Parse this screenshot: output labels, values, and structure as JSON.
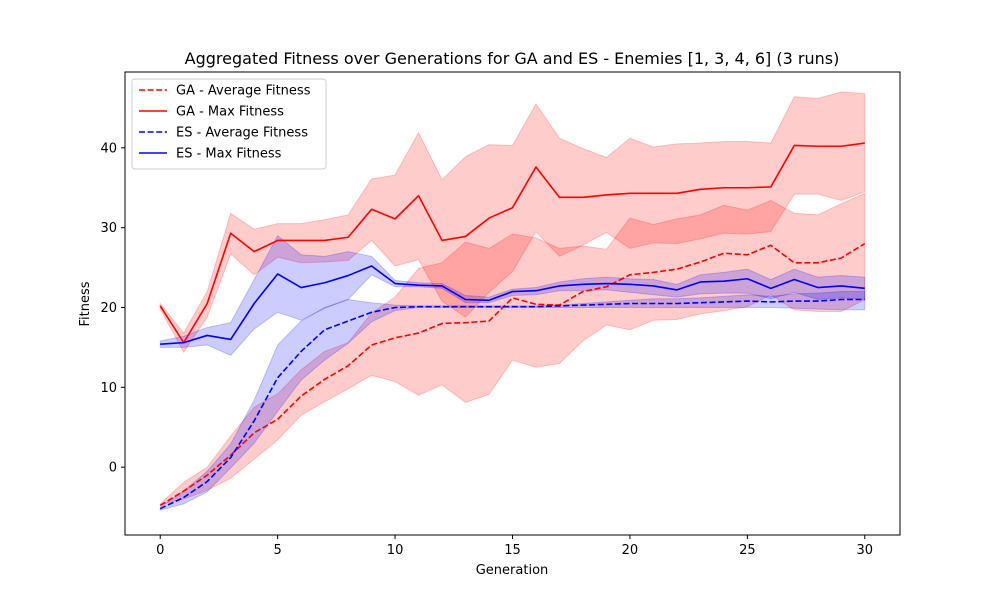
{
  "chart_data": {
    "type": "line",
    "title": "Aggregated Fitness over Generations for GA and ES - Enemies [1, 3, 4, 6] (3 runs)",
    "xlabel": "Generation",
    "ylabel": "Fitness",
    "xlim": [
      -1.5,
      31.5
    ],
    "ylim": [
      -8.5,
      49.5
    ],
    "xticks": [
      0,
      5,
      10,
      15,
      20,
      25,
      30
    ],
    "yticks": [
      0,
      10,
      20,
      30,
      40
    ],
    "legend_position": "top-left",
    "grid": false,
    "x": [
      0,
      1,
      2,
      3,
      4,
      5,
      6,
      7,
      8,
      9,
      10,
      11,
      12,
      13,
      14,
      15,
      16,
      17,
      18,
      19,
      20,
      21,
      22,
      23,
      24,
      25,
      26,
      27,
      28,
      29,
      30
    ],
    "series": [
      {
        "name": "GA - Average Fitness",
        "color": "#ff0000",
        "style": "dashed",
        "values": [
          -4.8,
          -3.0,
          -1.0,
          1.5,
          4.3,
          6.0,
          8.9,
          11.0,
          12.7,
          15.3,
          16.2,
          16.8,
          18.0,
          18.1,
          18.3,
          21.2,
          20.4,
          20.3,
          22.0,
          22.6,
          24.1,
          24.4,
          24.8,
          25.7,
          26.8,
          26.6,
          27.8,
          25.6,
          25.6,
          26.2,
          28.0
        ],
        "band_low": [
          -4.7,
          -4.0,
          -2.9,
          -1.4,
          1.0,
          3.4,
          6.5,
          8.2,
          9.8,
          11.5,
          10.7,
          9.0,
          10.3,
          8.1,
          9.1,
          13.4,
          12.5,
          13.0,
          15.8,
          17.8,
          17.2,
          18.4,
          18.5,
          19.2,
          19.6,
          20.1,
          21.6,
          19.7,
          19.5,
          19.5,
          21.0
        ],
        "band_high": [
          -4.6,
          -1.9,
          0.0,
          3.9,
          7.5,
          9.2,
          12.2,
          14.5,
          15.6,
          19.3,
          21.3,
          24.9,
          25.6,
          28.2,
          27.4,
          29.2,
          28.7,
          27.4,
          27.7,
          27.3,
          31.2,
          30.4,
          31.1,
          31.6,
          32.8,
          32.2,
          33.4,
          31.8,
          31.6,
          33.0,
          34.3
        ]
      },
      {
        "name": "GA - Max Fitness",
        "color": "#ff0000",
        "style": "solid",
        "values": [
          20.2,
          15.6,
          20.5,
          29.3,
          27.0,
          28.4,
          28.4,
          28.4,
          28.8,
          32.3,
          31.1,
          34.0,
          28.4,
          28.9,
          31.2,
          32.5,
          37.6,
          33.8,
          33.8,
          34.1,
          34.3,
          34.3,
          34.3,
          34.8,
          35.0,
          35.0,
          35.1,
          40.3,
          40.2,
          40.2,
          40.6
        ],
        "band_low": [
          19.8,
          14.4,
          18.8,
          26.7,
          24.1,
          26.3,
          25.6,
          25.7,
          25.9,
          28.4,
          25.2,
          26.0,
          20.8,
          18.8,
          21.9,
          24.5,
          29.5,
          26.4,
          27.8,
          29.4,
          27.4,
          28.1,
          28.0,
          28.6,
          29.3,
          29.2,
          29.5,
          34.2,
          34.2,
          33.4,
          34.5
        ],
        "band_high": [
          20.5,
          16.8,
          22.0,
          31.8,
          29.8,
          30.5,
          30.5,
          31.0,
          31.6,
          36.1,
          36.6,
          41.9,
          36.0,
          38.9,
          40.4,
          40.3,
          45.5,
          41.2,
          39.9,
          38.8,
          41.2,
          40.1,
          40.5,
          40.6,
          40.8,
          40.8,
          40.6,
          46.4,
          46.2,
          47.0,
          46.8
        ]
      },
      {
        "name": "ES - Average Fitness",
        "color": "#0000ff",
        "style": "dashed",
        "values": [
          -5.2,
          -3.8,
          -1.8,
          1.2,
          5.8,
          11.2,
          14.5,
          17.2,
          18.3,
          19.4,
          20.0,
          20.1,
          20.1,
          20.1,
          20.1,
          20.1,
          20.1,
          20.2,
          20.3,
          20.4,
          20.5,
          20.5,
          20.5,
          20.6,
          20.7,
          20.8,
          20.7,
          20.8,
          20.8,
          21.0,
          21.0
        ],
        "band_low": [
          -5.4,
          -4.6,
          -3.1,
          -0.1,
          3.0,
          7.0,
          10.9,
          13.4,
          15.5,
          18.2,
          19.6,
          20.0,
          20.0,
          20.0,
          20.0,
          20.0,
          20.0,
          20.0,
          20.0,
          20.0,
          20.0,
          20.0,
          20.0,
          20.0,
          20.0,
          20.0,
          20.0,
          19.9,
          19.8,
          19.7,
          19.7
        ],
        "band_high": [
          -5.0,
          -3.0,
          -0.5,
          2.9,
          8.4,
          15.3,
          18.3,
          20.0,
          21.0,
          20.6,
          20.3,
          20.2,
          20.2,
          20.2,
          20.2,
          20.2,
          20.2,
          20.3,
          20.5,
          20.7,
          20.9,
          21.1,
          21.1,
          21.2,
          21.4,
          21.6,
          21.4,
          21.7,
          21.8,
          22.0,
          22.0
        ]
      },
      {
        "name": "ES - Max Fitness",
        "color": "#0000ff",
        "style": "solid",
        "values": [
          15.4,
          15.6,
          16.5,
          16.0,
          20.5,
          24.2,
          22.5,
          23.1,
          24.0,
          25.2,
          23.0,
          22.8,
          22.7,
          21.0,
          20.9,
          22.0,
          22.1,
          22.7,
          22.9,
          23.0,
          22.9,
          22.7,
          22.2,
          23.2,
          23.3,
          23.6,
          22.4,
          23.5,
          22.5,
          22.7,
          22.4
        ],
        "band_low": [
          15.0,
          15.0,
          15.3,
          14.0,
          17.3,
          19.4,
          18.4,
          19.9,
          21.0,
          24.1,
          22.6,
          22.6,
          22.4,
          20.6,
          20.6,
          21.5,
          21.6,
          22.1,
          22.1,
          22.2,
          21.9,
          21.6,
          21.3,
          21.7,
          21.8,
          21.8,
          21.1,
          21.9,
          21.0,
          21.2,
          21.0
        ],
        "band_high": [
          15.8,
          16.4,
          17.5,
          18.1,
          23.5,
          29.0,
          26.6,
          26.4,
          27.0,
          26.4,
          23.4,
          23.1,
          23.0,
          21.5,
          21.3,
          22.3,
          22.5,
          23.2,
          23.6,
          23.8,
          23.6,
          23.5,
          22.9,
          24.1,
          24.4,
          24.8,
          23.5,
          24.8,
          23.8,
          24.0,
          23.8
        ]
      }
    ]
  }
}
